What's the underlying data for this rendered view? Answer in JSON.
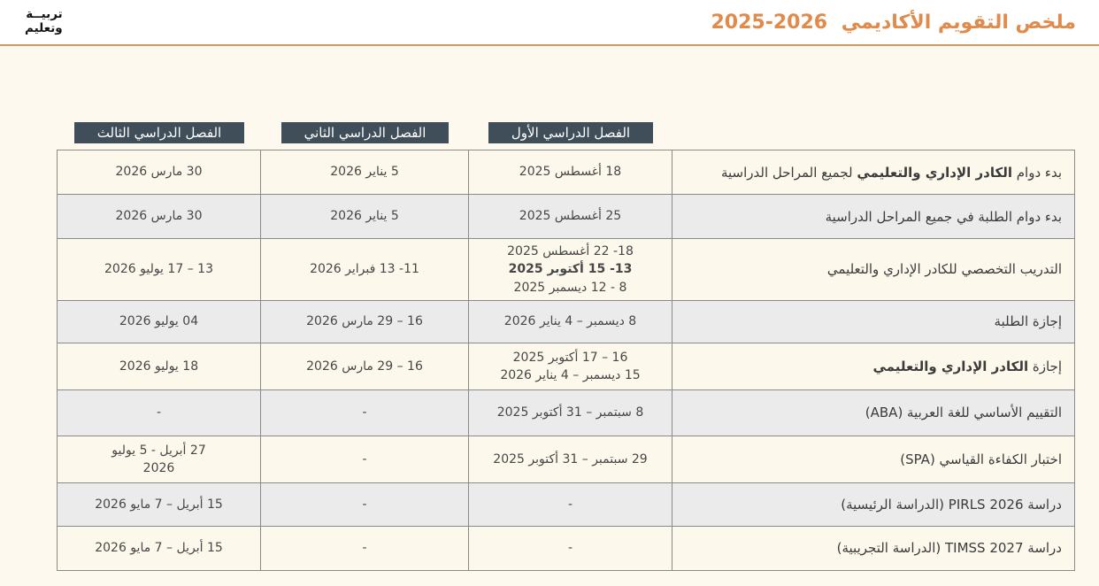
{
  "header": {
    "logo_line1": "تربيــة",
    "logo_line2": "وتعليم",
    "title": "ملخص التقويم الأكاديمي",
    "years": "2026-2025"
  },
  "table": {
    "headers": {
      "sem1": "الفصل الدراسي الأول",
      "sem2": "الفصل الدراسي الثاني",
      "sem3": "الفصل الدراسي الثالث"
    },
    "rows": [
      {
        "label_pre": "بدء دوام ",
        "label_bold": "الكادر الإداري والتعليمي",
        "label_post": " لجميع المراحل الدراسية",
        "sem1": [
          "18 أغسطس 2025"
        ],
        "sem2": [
          "5 يناير 2026"
        ],
        "sem3": [
          "30 مارس 2026"
        ]
      },
      {
        "label_pre": "بدء دوام الطلبة في جميع المراحل الدراسية",
        "sem1": [
          "25 أغسطس 2025"
        ],
        "sem2": [
          "5 يناير 2026"
        ],
        "sem3": [
          "30 مارس 2026"
        ]
      },
      {
        "label_pre": "التدريب التخصصي للكادر الإداري والتعليمي",
        "sem1": [
          "18- 22 أغسطس 2025",
          "13- 15 أكتوبر 2025",
          "8 - 12 ديسمبر 2025"
        ],
        "sem2": [
          "11- 13 فبراير 2026"
        ],
        "sem3": [
          "13 – 17 يوليو 2026"
        ]
      },
      {
        "label_pre": "إجازة الطلبة",
        "sem1": [
          "8 ديسمبر – 4 يناير 2026"
        ],
        "sem2": [
          "16 – 29 مارس 2026"
        ],
        "sem3": [
          "04 يوليو 2026"
        ]
      },
      {
        "label_pre": "إجازة ",
        "label_bold": "الكادر الإداري والتعليمي",
        "sem1": [
          "16 – 17 أكتوبر 2025",
          "15 ديسمبر – 4 يناير 2026"
        ],
        "sem2": [
          "16 – 29 مارس 2026"
        ],
        "sem3": [
          "18 يوليو 2026"
        ]
      },
      {
        "label_pre": "التقييم الأساسي للغة العربية (ABA)",
        "sem1": [
          "8 سبتمبر – 31 أكتوبر 2025"
        ],
        "sem2": [
          "-"
        ],
        "sem3": [
          "-"
        ]
      },
      {
        "label_pre": "اختبار الكفاءة القياسي (SPA)",
        "sem1": [
          "29 سبتمبر – 31 أكتوبر 2025"
        ],
        "sem2": [
          "-"
        ],
        "sem3": [
          "27 أبريل  - 5 يوليو",
          "2026"
        ]
      },
      {
        "label_pre": "دراسة PIRLS 2026 (الدراسة الرئيسية)",
        "sem1": [
          "-"
        ],
        "sem2": [
          "-"
        ],
        "sem3": [
          "15 أبريل – 7 مايو 2026"
        ]
      },
      {
        "label_pre": "دراسة TIMSS 2027 (الدراسة التجريبية)",
        "sem1": [
          "-"
        ],
        "sem2": [
          "-"
        ],
        "sem3": [
          "15 أبريل – 7 مايو 2026"
        ]
      }
    ]
  },
  "colors": {
    "accent_orange": "#E08A4C",
    "divider_tan": "#D09A62",
    "header_chip_dark": "#3F4E58",
    "row_cream": "#FDF8EC",
    "row_gray": "#EBEBEB",
    "border_gray": "#8A8A8A",
    "page_background": "#FDF9EE"
  }
}
